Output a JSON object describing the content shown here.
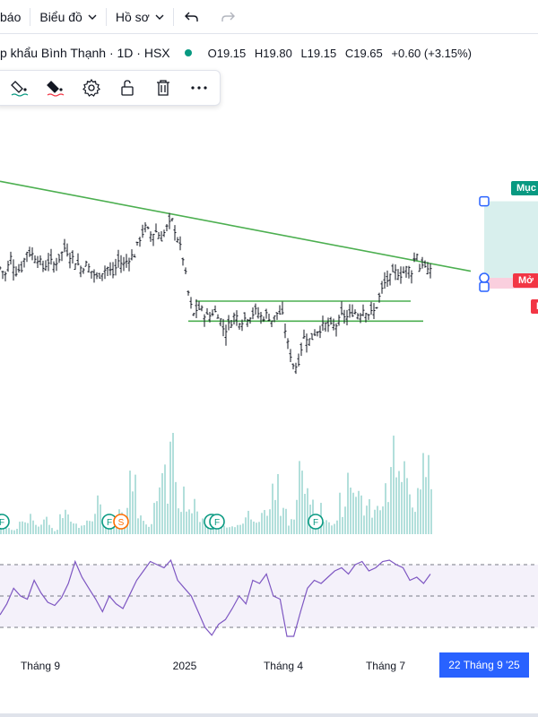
{
  "toolbar": {
    "alerts_label": "báo",
    "chart_label": "Biểu đồ",
    "profile_label": "Hồ sơ"
  },
  "legend": {
    "symbol": "p khẩu Bình Thạnh · 1D · HSX",
    "open": "O19.15",
    "high": "H19.80",
    "low": "L19.15",
    "close": "C19.65",
    "change": "+0.60 (+3.15%)",
    "status_color": "#089981"
  },
  "drawing_toolbar": {
    "icons": [
      "fill-color-icon",
      "text-color-icon",
      "settings-icon",
      "lock-icon",
      "trash-icon",
      "more-icon"
    ]
  },
  "position_tool": {
    "target_label": "Mục",
    "open_label": "Mở",
    "stop_letter": "D",
    "target_color": "#089981",
    "stop_color": "#f23645"
  },
  "events": {
    "f_marker": "F",
    "s_marker": "S"
  },
  "time_axis": {
    "labels": [
      "Tháng 9",
      "2025",
      "Tháng 4",
      "Tháng 7"
    ],
    "cursor_date": "22 Tháng 9 '25"
  },
  "colors": {
    "trendline": "#4caf50",
    "rsi": "#7e57c2",
    "volume": "#b2dfdb",
    "cursor": "#2962ff"
  },
  "chart_data": {
    "type": "ohlc",
    "price_path": [
      [
        0,
        18.3
      ],
      [
        6,
        18.1
      ],
      [
        12,
        18.6
      ],
      [
        18,
        18.2
      ],
      [
        24,
        18.3
      ],
      [
        30,
        18.8
      ],
      [
        36,
        18.7
      ],
      [
        42,
        18.6
      ],
      [
        48,
        18.3
      ],
      [
        54,
        18.5
      ],
      [
        60,
        18.4
      ],
      [
        66,
        18.6
      ],
      [
        72,
        18.9
      ],
      [
        78,
        18.7
      ],
      [
        84,
        18.5
      ],
      [
        90,
        18.3
      ],
      [
        96,
        18.4
      ],
      [
        102,
        18.2
      ],
      [
        108,
        18.0
      ],
      [
        114,
        18.2
      ],
      [
        120,
        18.3
      ],
      [
        126,
        18.1
      ],
      [
        132,
        18.5
      ],
      [
        138,
        18.4
      ],
      [
        144,
        18.6
      ],
      [
        150,
        18.7
      ],
      [
        156,
        19.2
      ],
      [
        162,
        19.5
      ],
      [
        168,
        19.3
      ],
      [
        174,
        19.4
      ],
      [
        180,
        19.2
      ],
      [
        186,
        19.5
      ],
      [
        192,
        19.7
      ],
      [
        198,
        19.2
      ],
      [
        204,
        18.6
      ],
      [
        208,
        17.9
      ],
      [
        212,
        17.2
      ],
      [
        216,
        16.9
      ],
      [
        220,
        17.1
      ],
      [
        226,
        17.0
      ],
      [
        232,
        16.8
      ],
      [
        238,
        17.0
      ],
      [
        244,
        16.9
      ],
      [
        250,
        16.4
      ],
      [
        256,
        16.6
      ],
      [
        262,
        16.9
      ],
      [
        268,
        16.7
      ],
      [
        274,
        16.8
      ],
      [
        280,
        16.9
      ],
      [
        286,
        17.0
      ],
      [
        292,
        16.8
      ],
      [
        298,
        16.9
      ],
      [
        304,
        16.7
      ],
      [
        310,
        17.0
      ],
      [
        316,
        16.8
      ],
      [
        320,
        16.1
      ],
      [
        324,
        15.7
      ],
      [
        328,
        15.3
      ],
      [
        332,
        15.4
      ],
      [
        336,
        15.9
      ],
      [
        340,
        16.3
      ],
      [
        346,
        16.1
      ],
      [
        352,
        16.4
      ],
      [
        358,
        16.5
      ],
      [
        364,
        16.6
      ],
      [
        370,
        16.5
      ],
      [
        376,
        16.6
      ],
      [
        382,
        16.9
      ],
      [
        388,
        16.8
      ],
      [
        394,
        17.0
      ],
      [
        400,
        16.9
      ],
      [
        406,
        17.1
      ],
      [
        412,
        16.9
      ],
      [
        418,
        17.0
      ],
      [
        424,
        17.5
      ],
      [
        430,
        17.9
      ],
      [
        436,
        18.0
      ],
      [
        442,
        18.2
      ],
      [
        448,
        18.1
      ],
      [
        454,
        18.3
      ],
      [
        460,
        18.2
      ],
      [
        464,
        18.9
      ],
      [
        468,
        18.3
      ],
      [
        472,
        18.5
      ],
      [
        476,
        18.1
      ],
      [
        480,
        18.3
      ]
    ],
    "trendline": [
      [
        0,
        20.9
      ],
      [
        525,
        18.2
      ]
    ],
    "support_lines": [
      [
        218,
        458,
        17.3
      ],
      [
        210,
        472,
        16.7
      ]
    ],
    "volume_heights": [
      0.1,
      0.05,
      0.12,
      0.2,
      0.08,
      0.15,
      0.06,
      0.22,
      0.18,
      0.09,
      0.13,
      0.35,
      0.12,
      0.1,
      0.25,
      0.55,
      0.2,
      0.12,
      0.4,
      0.6,
      0.85,
      0.45,
      0.3,
      0.22,
      0.15,
      0.12,
      0.1,
      0.08,
      0.14,
      0.25,
      0.18,
      0.3,
      0.5,
      0.22,
      0.15,
      0.65,
      0.4,
      0.28,
      0.19,
      0.12,
      0.35,
      0.7,
      0.45,
      0.3,
      0.26,
      0.55,
      1.0,
      0.62,
      0.5,
      0.4,
      0.75,
      0.55
    ],
    "rsi": [
      38,
      45,
      55,
      50,
      48,
      60,
      52,
      46,
      44,
      49,
      58,
      72,
      62,
      55,
      48,
      40,
      50,
      45,
      42,
      51,
      60,
      66,
      72,
      70,
      68,
      73,
      60,
      55,
      50,
      40,
      30,
      25,
      32,
      35,
      42,
      50,
      45,
      60,
      58,
      64,
      50,
      48,
      20,
      15,
      40,
      55,
      60,
      58,
      62,
      66,
      68,
      64,
      70,
      72,
      66,
      68,
      72,
      74,
      70,
      68,
      60,
      62,
      58,
      64
    ],
    "rsi_bands": [
      70,
      50,
      30
    ]
  }
}
